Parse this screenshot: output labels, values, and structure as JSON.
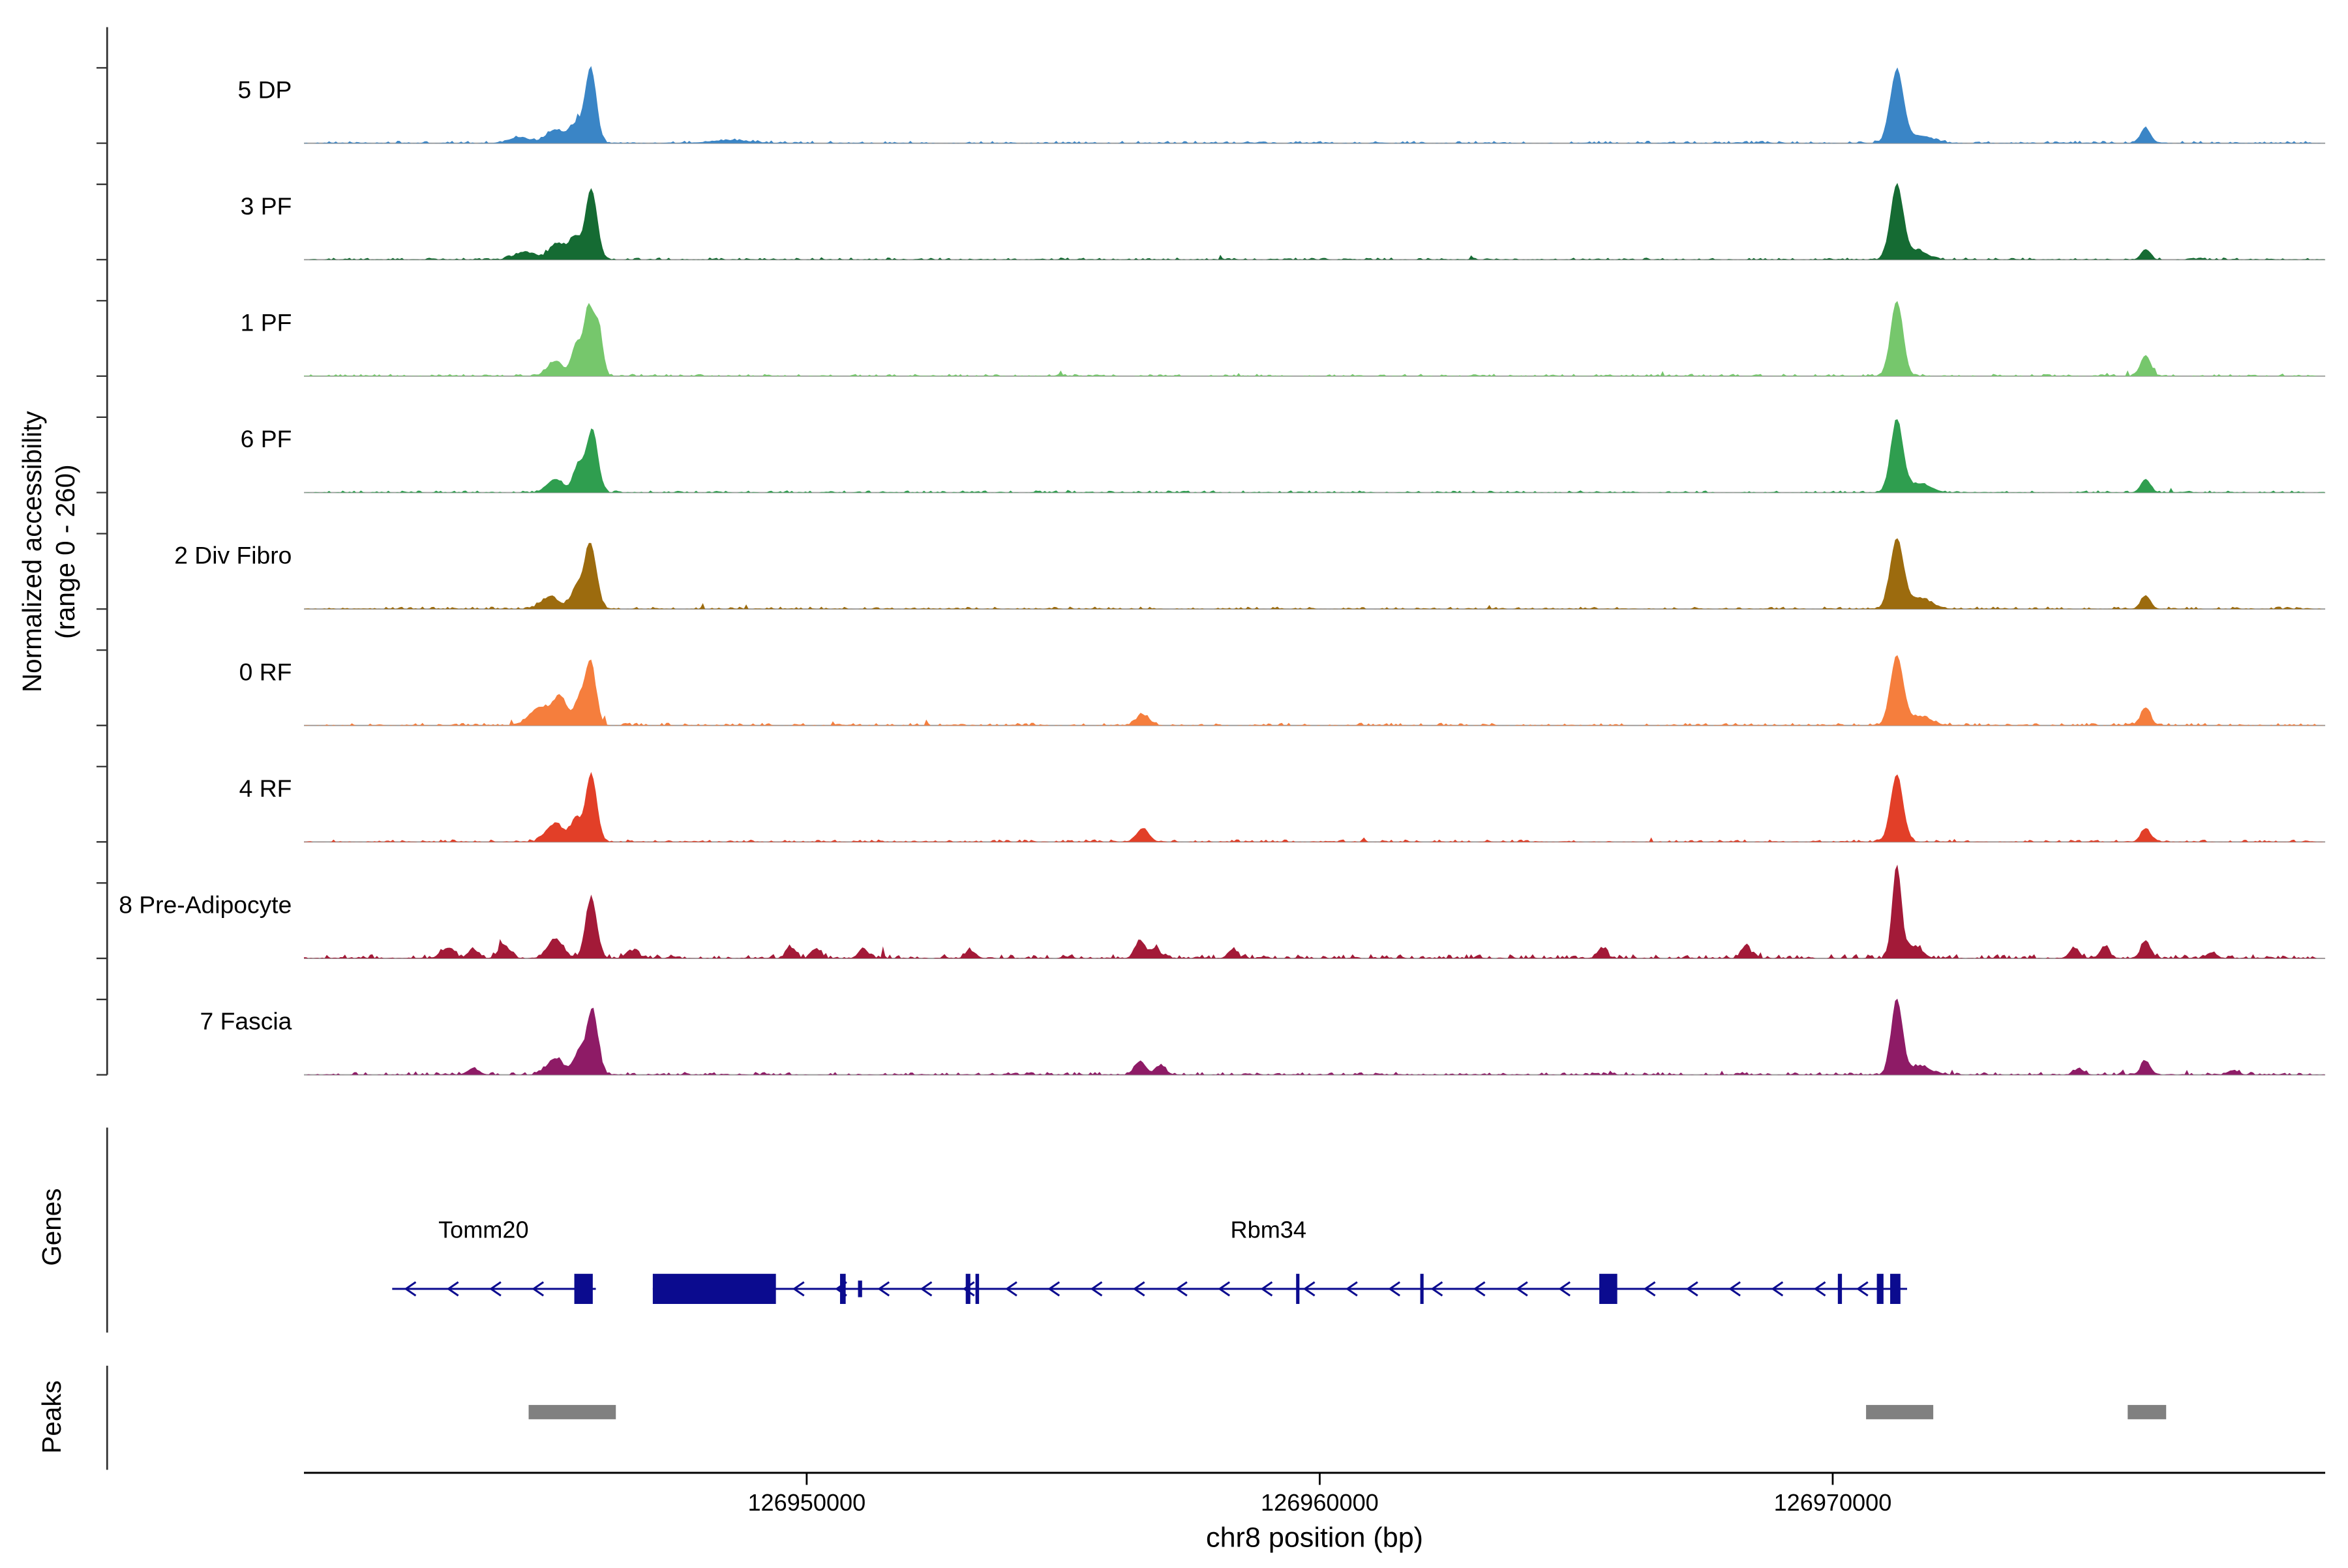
{
  "figure": {
    "y_axis_label_line1": "Normalized accessibility",
    "y_axis_label_line2": "(range 0 - 260)",
    "genes_label": "Genes",
    "peaks_label": "Peaks",
    "x_axis_title": "chr8 position (bp)"
  },
  "chart_data": {
    "type": "area",
    "description": "Genome browser coverage tracks of normalized chromatin accessibility on chr8 with gene models and peak regions",
    "xlim": [
      126940200,
      126979600
    ],
    "signal_range": [
      0,
      260
    ],
    "x_ticks": [
      {
        "bp": 126950000,
        "label": "126950000"
      },
      {
        "bp": 126960000,
        "label": "126960000"
      },
      {
        "bp": 126970000,
        "label": "126970000"
      }
    ],
    "tracks": [
      {
        "label": "5 DP",
        "color": "#3A85C6",
        "noise": 0.9,
        "peaks": [
          {
            "bp": 126944400,
            "h": 4,
            "sd": 200
          },
          {
            "bp": 126945100,
            "h": 9,
            "sd": 180
          },
          {
            "bp": 126945500,
            "h": 12,
            "sd": 120
          },
          {
            "bp": 126945790,
            "h": 50,
            "sd": 110
          },
          {
            "bp": 126948500,
            "h": 2,
            "sd": 400
          },
          {
            "bp": 126971250,
            "h": 48,
            "sd": 130
          },
          {
            "bp": 126971700,
            "h": 5,
            "sd": 250
          },
          {
            "bp": 126976100,
            "h": 10,
            "sd": 100
          }
        ]
      },
      {
        "label": "3 PF",
        "color": "#156B33",
        "noise": 0.8,
        "peaks": [
          {
            "bp": 126944500,
            "h": 5,
            "sd": 200
          },
          {
            "bp": 126945150,
            "h": 11,
            "sd": 160
          },
          {
            "bp": 126945480,
            "h": 14,
            "sd": 100
          },
          {
            "bp": 126945800,
            "h": 47,
            "sd": 115
          },
          {
            "bp": 126971250,
            "h": 49,
            "sd": 125
          },
          {
            "bp": 126971650,
            "h": 6,
            "sd": 200
          },
          {
            "bp": 126976100,
            "h": 7,
            "sd": 90
          }
        ]
      },
      {
        "label": "1 PF",
        "color": "#76C76C",
        "noise": 0.85,
        "peaks": [
          {
            "bp": 126945100,
            "h": 10,
            "sd": 150
          },
          {
            "bp": 126945500,
            "h": 20,
            "sd": 90
          },
          {
            "bp": 126945750,
            "h": 46,
            "sd": 100
          },
          {
            "bp": 126945950,
            "h": 30,
            "sd": 80
          },
          {
            "bp": 126971250,
            "h": 50,
            "sd": 120
          },
          {
            "bp": 126976100,
            "h": 14,
            "sd": 100
          }
        ]
      },
      {
        "label": "6 PF",
        "color": "#2F9E4F",
        "noise": 0.8,
        "peaks": [
          {
            "bp": 126945100,
            "h": 9,
            "sd": 160
          },
          {
            "bp": 126945550,
            "h": 18,
            "sd": 100
          },
          {
            "bp": 126945820,
            "h": 42,
            "sd": 110
          },
          {
            "bp": 126971250,
            "h": 48,
            "sd": 120
          },
          {
            "bp": 126971700,
            "h": 6,
            "sd": 220
          },
          {
            "bp": 126976100,
            "h": 9,
            "sd": 95
          }
        ]
      },
      {
        "label": "2 Div Fibro",
        "color": "#9C6B0E",
        "noise": 0.9,
        "peaks": [
          {
            "bp": 126945000,
            "h": 8,
            "sd": 180
          },
          {
            "bp": 126945500,
            "h": 12,
            "sd": 110
          },
          {
            "bp": 126945780,
            "h": 44,
            "sd": 120
          },
          {
            "bp": 126971250,
            "h": 46,
            "sd": 130
          },
          {
            "bp": 126971700,
            "h": 7,
            "sd": 230
          },
          {
            "bp": 126976100,
            "h": 9,
            "sd": 95
          }
        ]
      },
      {
        "label": "0 RF",
        "color": "#F57E3D",
        "noise": 1.0,
        "peaks": [
          {
            "bp": 126944800,
            "h": 12,
            "sd": 200
          },
          {
            "bp": 126945200,
            "h": 18,
            "sd": 140
          },
          {
            "bp": 126945550,
            "h": 14,
            "sd": 90
          },
          {
            "bp": 126945780,
            "h": 43,
            "sd": 110
          },
          {
            "bp": 126956550,
            "h": 7,
            "sd": 130
          },
          {
            "bp": 126971250,
            "h": 46,
            "sd": 125
          },
          {
            "bp": 126971700,
            "h": 6,
            "sd": 220
          },
          {
            "bp": 126976100,
            "h": 12,
            "sd": 95
          }
        ]
      },
      {
        "label": "4 RF",
        "color": "#E23F28",
        "noise": 0.9,
        "peaks": [
          {
            "bp": 126945100,
            "h": 12,
            "sd": 170
          },
          {
            "bp": 126945500,
            "h": 14,
            "sd": 100
          },
          {
            "bp": 126945800,
            "h": 45,
            "sd": 110
          },
          {
            "bp": 126956550,
            "h": 9,
            "sd": 120
          },
          {
            "bp": 126971250,
            "h": 45,
            "sd": 120
          },
          {
            "bp": 126976100,
            "h": 9,
            "sd": 95
          }
        ]
      },
      {
        "label": "8 Pre-Adipocyte",
        "color": "#A31A38",
        "noise": 1.6,
        "peaks": [
          {
            "bp": 126943000,
            "h": 7,
            "sd": 120
          },
          {
            "bp": 126943500,
            "h": 6,
            "sd": 100
          },
          {
            "bp": 126944100,
            "h": 9,
            "sd": 110
          },
          {
            "bp": 126945100,
            "h": 13,
            "sd": 150
          },
          {
            "bp": 126945800,
            "h": 40,
            "sd": 110
          },
          {
            "bp": 126946600,
            "h": 5,
            "sd": 120
          },
          {
            "bp": 126949700,
            "h": 7,
            "sd": 90
          },
          {
            "bp": 126950200,
            "h": 6,
            "sd": 90
          },
          {
            "bp": 126951100,
            "h": 7,
            "sd": 90
          },
          {
            "bp": 126953200,
            "h": 5,
            "sd": 100
          },
          {
            "bp": 126956500,
            "h": 12,
            "sd": 100
          },
          {
            "bp": 126956800,
            "h": 7,
            "sd": 90
          },
          {
            "bp": 126958300,
            "h": 6,
            "sd": 90
          },
          {
            "bp": 126965500,
            "h": 7,
            "sd": 90
          },
          {
            "bp": 126968300,
            "h": 8,
            "sd": 90
          },
          {
            "bp": 126971250,
            "h": 62,
            "sd": 90
          },
          {
            "bp": 126971600,
            "h": 8,
            "sd": 150
          },
          {
            "bp": 126974700,
            "h": 7,
            "sd": 90
          },
          {
            "bp": 126975300,
            "h": 8,
            "sd": 90
          },
          {
            "bp": 126976100,
            "h": 12,
            "sd": 90
          },
          {
            "bp": 126977400,
            "h": 4,
            "sd": 90
          }
        ]
      },
      {
        "label": "7 Fascia",
        "color": "#8E1B66",
        "noise": 1.1,
        "peaks": [
          {
            "bp": 126943500,
            "h": 4,
            "sd": 120
          },
          {
            "bp": 126945100,
            "h": 11,
            "sd": 160
          },
          {
            "bp": 126945550,
            "h": 14,
            "sd": 100
          },
          {
            "bp": 126945820,
            "h": 44,
            "sd": 110
          },
          {
            "bp": 126956500,
            "h": 9,
            "sd": 110
          },
          {
            "bp": 126956900,
            "h": 6,
            "sd": 100
          },
          {
            "bp": 126971250,
            "h": 50,
            "sd": 110
          },
          {
            "bp": 126971700,
            "h": 6,
            "sd": 200
          },
          {
            "bp": 126974800,
            "h": 4,
            "sd": 100
          },
          {
            "bp": 126976100,
            "h": 9,
            "sd": 95
          },
          {
            "bp": 126977800,
            "h": 3,
            "sd": 100
          }
        ]
      }
    ],
    "genes": [
      {
        "name": "Tomm20",
        "strand": "-",
        "start": 126941920,
        "end": 126945890,
        "label_bp": 126943700,
        "exons": [
          {
            "s": 126945470,
            "e": 126945830,
            "tall": true
          }
        ]
      },
      {
        "name": "Rbm34",
        "strand": "-",
        "start": 126947000,
        "end": 126971450,
        "label_bp": 126959000,
        "exons": [
          {
            "s": 126947000,
            "e": 126949400,
            "tall": true
          },
          {
            "s": 126950650,
            "e": 126950760,
            "tall": true
          },
          {
            "s": 126951000,
            "e": 126951080,
            "tall": false
          },
          {
            "s": 126953100,
            "e": 126953190,
            "tall": true
          },
          {
            "s": 126953290,
            "e": 126953360,
            "tall": true
          },
          {
            "s": 126959540,
            "e": 126959600,
            "tall": true
          },
          {
            "s": 126961960,
            "e": 126962020,
            "tall": true
          },
          {
            "s": 126965450,
            "e": 126965800,
            "tall": true
          },
          {
            "s": 126970100,
            "e": 126970180,
            "tall": true
          },
          {
            "s": 126970860,
            "e": 126970990,
            "tall": true
          },
          {
            "s": 126971120,
            "e": 126971320,
            "tall": true
          }
        ]
      }
    ],
    "gene_color": "#0B0B8F",
    "peak_regions": [
      {
        "start": 126944580,
        "end": 126946280
      },
      {
        "start": 126970650,
        "end": 126971960
      },
      {
        "start": 126975750,
        "end": 126976500
      }
    ],
    "peak_color": "#808080",
    "baseline_color": "#999999"
  }
}
